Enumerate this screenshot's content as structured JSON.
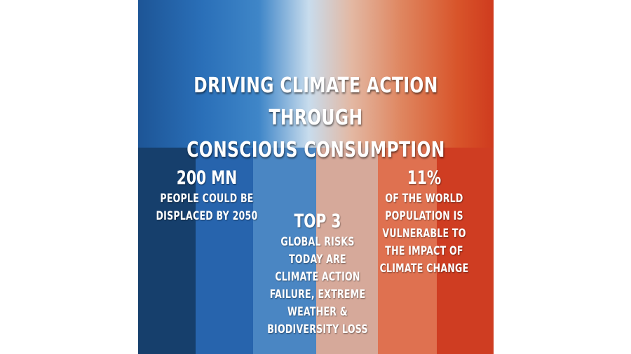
{
  "headline": {
    "line1": "DRIVING CLIMATE ACTION THROUGH",
    "line2": "CONSCIOUS CONSUMPTION"
  },
  "stats": {
    "left": {
      "figure": "200 MN",
      "lines": [
        "PEOPLE COULD BE",
        "DISPLACED BY 2050"
      ]
    },
    "middle": {
      "figure": "TOP 3",
      "lines": [
        "GLOBAL RISKS",
        "TODAY ARE",
        "CLIMATE ACTION",
        "FAILURE, EXTREME",
        "WEATHER &",
        "BIODIVERSITY LOSS"
      ]
    },
    "right": {
      "figure": "11%",
      "lines": [
        "OF THE WORLD",
        "POPULATION IS",
        "VULNERABLE TO",
        "THE IMPACT OF",
        "CLIMATE CHANGE"
      ]
    }
  },
  "colors": {
    "dark_blue": "#163f6c",
    "blue": "#2764ad",
    "light_blue": "#4a86c3",
    "pale_salmon": "#d6a99a",
    "orange": "#df7150",
    "red": "#cf3d22"
  }
}
